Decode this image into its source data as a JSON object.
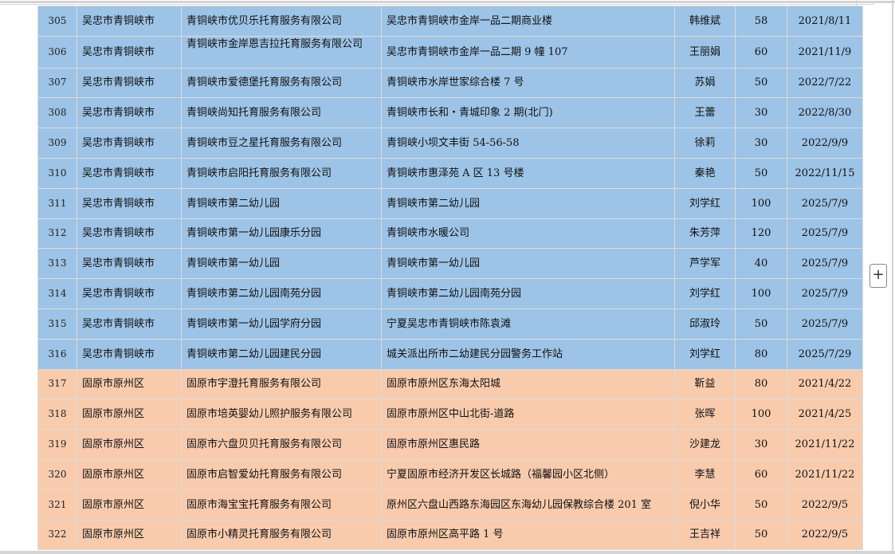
{
  "colors": {
    "group_qingtongxia": "#9dc3e6",
    "group_guyuan": "#f8cbad",
    "grid": "#dcdcdc"
  },
  "add_button": {
    "icon": "plus-icon",
    "label": "+"
  },
  "rows": [
    {
      "no": "305",
      "district": "吴忠市青铜峡市",
      "name": "青铜峡市优贝乐托育服务有限公司",
      "address": "吴忠市青铜峡市金岸一品二期商业楼",
      "contact": "韩维斌",
      "capacity": "58",
      "date": "2021/8/11",
      "group": "blue"
    },
    {
      "no": "306",
      "district": "吴忠市青铜峡市",
      "name": "青铜峡市金岸恩吉拉托育服务有限公司",
      "address": "吴忠市青铜峡市金岸一品二期 9 幢 107",
      "contact": "王丽娟",
      "capacity": "60",
      "date": "2021/11/9",
      "group": "blue"
    },
    {
      "no": "307",
      "district": "吴忠市青铜峡市",
      "name": "青铜峡市爱德堡托育服务有限公司",
      "address": "青铜峡市水岸世家综合楼 7 号",
      "contact": "苏娟",
      "capacity": "50",
      "date": "2022/7/22",
      "group": "blue"
    },
    {
      "no": "308",
      "district": "吴忠市青铜峡市",
      "name": "青铜峡尚知托育服务有限公司",
      "address": "青铜峡市长和・青城印象 2 期(北门)",
      "contact": "王蕾",
      "capacity": "30",
      "date": "2022/8/30",
      "group": "blue"
    },
    {
      "no": "309",
      "district": "吴忠市青铜峡市",
      "name": "青铜峡市豆之星托育服务有限公司",
      "address": "青铜峡小坝文丰街 54-56-58",
      "contact": "徐莉",
      "capacity": "30",
      "date": "2022/9/9",
      "group": "blue"
    },
    {
      "no": "310",
      "district": "吴忠市青铜峡市",
      "name": "青铜峡市启阳托育服务有限公司",
      "address": "青铜峡市惠泽苑 A 区 13 号楼",
      "contact": "秦艳",
      "capacity": "50",
      "date": "2022/11/15",
      "group": "blue"
    },
    {
      "no": "311",
      "district": "吴忠市青铜峡市",
      "name": "青铜峡市第二幼儿园",
      "address": "青铜峡市第二幼儿园",
      "contact": "刘学红",
      "capacity": "100",
      "date": "2025/7/9",
      "group": "blue"
    },
    {
      "no": "312",
      "district": "吴忠市青铜峡市",
      "name": "青铜峡市第一幼儿园康乐分园",
      "address": "青铜峡市水暖公司",
      "contact": "朱芳萍",
      "capacity": "120",
      "date": "2025/7/9",
      "group": "blue"
    },
    {
      "no": "313",
      "district": "吴忠市青铜峡市",
      "name": "青铜峡市第一幼儿园",
      "address": "青铜峡市第一幼儿园",
      "contact": "芦学军",
      "capacity": "40",
      "date": "2025/7/9",
      "group": "blue"
    },
    {
      "no": "314",
      "district": "吴忠市青铜峡市",
      "name": "青铜峡市第二幼儿园南苑分园",
      "address": "青铜峡市第二幼儿园南苑分园",
      "contact": "刘学红",
      "capacity": "100",
      "date": "2025/7/9",
      "group": "blue"
    },
    {
      "no": "315",
      "district": "吴忠市青铜峡市",
      "name": "青铜峡市第一幼儿园学府分园",
      "address": "宁夏吴忠市青铜峡市陈袁滩",
      "contact": "邱淑玲",
      "capacity": "50",
      "date": "2025/7/9",
      "group": "blue"
    },
    {
      "no": "316",
      "district": "吴忠市青铜峡市",
      "name": "青铜峡市第二幼儿园建民分园",
      "address": "城关派出所市二幼建民分园警务工作站",
      "contact": "刘学红",
      "capacity": "80",
      "date": "2025/7/29",
      "group": "blue"
    },
    {
      "no": "317",
      "district": "固原市原州区",
      "name": "固原市宇澄托育服务有限公司",
      "address": "固原市原州区东海太阳城",
      "contact": "靳益",
      "capacity": "80",
      "date": "2021/4/22",
      "group": "orange"
    },
    {
      "no": "318",
      "district": "固原市原州区",
      "name": "固原市培英婴幼儿照护服务有限公司",
      "address": "固原市原州区中山北街-道路",
      "contact": "张晖",
      "capacity": "100",
      "date": "2021/4/25",
      "group": "orange"
    },
    {
      "no": "319",
      "district": "固原市原州区",
      "name": "固原市六盘贝贝托育服务有限公司",
      "address": "固原市原州区惠民路",
      "contact": "沙建龙",
      "capacity": "30",
      "date": "2021/11/22",
      "group": "orange"
    },
    {
      "no": "320",
      "district": "固原市原州区",
      "name": "固原市启智爱幼托育服务有限公司",
      "address": "宁夏固原市经济开发区长城路（福馨园小区北侧）",
      "contact": "李慧",
      "capacity": "60",
      "date": "2021/11/22",
      "group": "orange"
    },
    {
      "no": "321",
      "district": "固原市原州区",
      "name": "固原市海宝宝托育服务有限公司",
      "address": "原州区六盘山西路东海园区东海幼儿园保教综合楼 201 室",
      "contact": "倪小华",
      "capacity": "50",
      "date": "2022/9/5",
      "group": "orange"
    },
    {
      "no": "322",
      "district": "固原市原州区",
      "name": "固原市小精灵托育服务有限公司",
      "address": "固原市原州区高平路 1 号",
      "contact": "王吉祥",
      "capacity": "50",
      "date": "2022/9/5",
      "group": "orange"
    }
  ]
}
